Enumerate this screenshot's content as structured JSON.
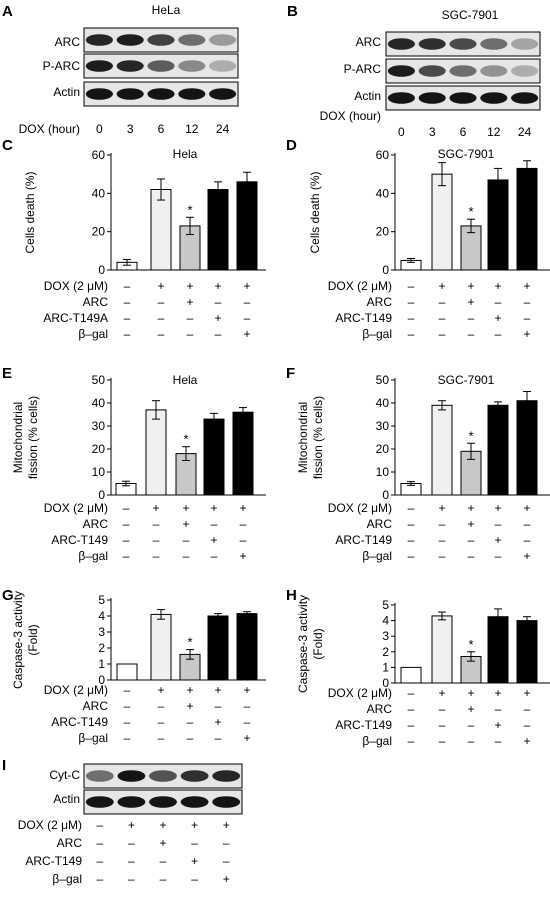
{
  "blots": [
    {
      "panel": "A",
      "title": "HeLa",
      "rows": [
        "ARC",
        "P-ARC",
        "Actin"
      ],
      "axis_label": "DOX (hour)",
      "lanes": [
        "0",
        "3",
        "6",
        "12",
        "24"
      ],
      "band_intensity": [
        [
          0.9,
          0.95,
          0.75,
          0.5,
          0.25
        ],
        [
          0.95,
          0.9,
          0.6,
          0.35,
          0.15
        ],
        [
          1,
          1,
          1,
          1,
          1
        ]
      ]
    },
    {
      "panel": "B",
      "title": "SGC-7901",
      "rows": [
        "ARC",
        "P-ARC",
        "Actin"
      ],
      "axis_label": "DOX (hour)",
      "lanes": [
        "0",
        "3",
        "6",
        "12",
        "24"
      ],
      "band_intensity": [
        [
          0.9,
          0.85,
          0.7,
          0.5,
          0.2
        ],
        [
          0.95,
          0.7,
          0.5,
          0.3,
          0.15
        ],
        [
          1,
          1,
          1,
          1,
          1
        ]
      ]
    },
    {
      "panel": "I",
      "title": "",
      "rows": [
        "Cyt-C",
        "Actin"
      ],
      "lanes": [
        "",
        "",
        "",
        "",
        ""
      ],
      "band_intensity": [
        [
          0.5,
          1.0,
          0.65,
          0.85,
          0.9
        ],
        [
          1,
          1,
          1,
          1,
          1
        ]
      ],
      "conditions": {
        "labels": [
          "DOX (2 μM)",
          "ARC",
          "ARC-T149",
          "β–gal"
        ],
        "signs": [
          [
            "–",
            "+",
            "+",
            "+",
            "+"
          ],
          [
            "–",
            "–",
            "+",
            "–",
            "–"
          ],
          [
            "–",
            "–",
            "–",
            "+",
            "–"
          ],
          [
            "–",
            "–",
            "–",
            "–",
            "+"
          ]
        ]
      }
    }
  ],
  "chart_data": [
    {
      "panel": "C",
      "type": "bar",
      "title": "Hela",
      "ylabel": "Cells death (%)",
      "xlabel": "",
      "ylim": [
        0,
        60
      ],
      "yticks": [
        "0",
        "20",
        "40",
        "60"
      ],
      "values": [
        4,
        42,
        23,
        42,
        46
      ],
      "errors": [
        1.5,
        5.5,
        4.5,
        4,
        5
      ],
      "significance": [
        "",
        "",
        "*",
        "",
        ""
      ],
      "conditions": {
        "labels": [
          "DOX (2 μM)",
          "ARC",
          "ARC-T149A",
          "β–gal"
        ],
        "signs": [
          [
            "–",
            "+",
            "+",
            "+",
            "+"
          ],
          [
            "–",
            "–",
            "+",
            "–",
            "–"
          ],
          [
            "–",
            "–",
            "–",
            "+",
            "–"
          ],
          [
            "–",
            "–",
            "–",
            "–",
            "+"
          ]
        ]
      }
    },
    {
      "panel": "D",
      "type": "bar",
      "title": "SGC-7901",
      "ylabel": "Cells death (%)",
      "xlabel": "",
      "ylim": [
        0,
        60
      ],
      "yticks": [
        "0",
        "20",
        "40",
        "60"
      ],
      "values": [
        5,
        50,
        23,
        47,
        53
      ],
      "errors": [
        1,
        6,
        3.5,
        6,
        4
      ],
      "significance": [
        "",
        "",
        "*",
        "",
        ""
      ],
      "conditions": {
        "labels": [
          "DOX (2 μM)",
          "ARC",
          "ARC-T149",
          "β–gal"
        ],
        "signs": [
          [
            "–",
            "+",
            "+",
            "+",
            "+"
          ],
          [
            "–",
            "–",
            "+",
            "–",
            "–"
          ],
          [
            "–",
            "–",
            "–",
            "+",
            "–"
          ],
          [
            "–",
            "–",
            "–",
            "–",
            "+"
          ]
        ]
      }
    },
    {
      "panel": "E",
      "type": "bar",
      "title": "Hela",
      "ylabel": "Mitochondrial fission (% cells)",
      "xlabel": "",
      "ylim": [
        0,
        50
      ],
      "yticks": [
        "0",
        "10",
        "20",
        "30",
        "40",
        "50"
      ],
      "values": [
        5,
        37,
        18,
        33,
        36
      ],
      "errors": [
        1,
        4,
        3,
        2.5,
        2
      ],
      "significance": [
        "",
        "",
        "*",
        "",
        ""
      ],
      "conditions": {
        "labels": [
          "DOX (2 μM)",
          "ARC",
          "ARC-T149",
          "β–gal"
        ],
        "signs": [
          [
            "–",
            "+",
            "+",
            "+",
            "+"
          ],
          [
            "–",
            "–",
            "+",
            "–",
            "–"
          ],
          [
            "–",
            "–",
            "–",
            "+",
            "–"
          ],
          [
            "–",
            "–",
            "–",
            "–",
            "+"
          ]
        ]
      }
    },
    {
      "panel": "F",
      "type": "bar",
      "title": "SGC-7901",
      "ylabel": "Mitochondrial fission (% cells)",
      "xlabel": "",
      "ylim": [
        0,
        50
      ],
      "yticks": [
        "0",
        "10",
        "20",
        "30",
        "40",
        "50"
      ],
      "values": [
        5,
        39,
        19,
        39,
        41
      ],
      "errors": [
        0.8,
        2,
        3.5,
        1.5,
        4
      ],
      "significance": [
        "",
        "",
        "*",
        "",
        ""
      ],
      "conditions": {
        "labels": [
          "DOX (2 μM)",
          "ARC",
          "ARC-T149",
          "β–gal"
        ],
        "signs": [
          [
            "–",
            "+",
            "+",
            "+",
            "+"
          ],
          [
            "–",
            "–",
            "+",
            "–",
            "–"
          ],
          [
            "–",
            "–",
            "–",
            "+",
            "–"
          ],
          [
            "–",
            "–",
            "–",
            "–",
            "+"
          ]
        ]
      }
    },
    {
      "panel": "G",
      "type": "bar",
      "title": "",
      "ylabel": "Caspase-3 activity (Fold)",
      "xlabel": "",
      "ylim": [
        0,
        5
      ],
      "yticks": [
        "0",
        "1",
        "2",
        "3",
        "4",
        "5"
      ],
      "values": [
        1,
        4.1,
        1.6,
        4.0,
        4.15
      ],
      "errors": [
        0,
        0.3,
        0.3,
        0.15,
        0.12
      ],
      "significance": [
        "",
        "",
        "*",
        "",
        ""
      ],
      "conditions": {
        "labels": [
          "DOX (2 μM)",
          "ARC",
          "ARC-T149",
          "β–gal"
        ],
        "signs": [
          [
            "–",
            "+",
            "+",
            "+",
            "+"
          ],
          [
            "–",
            "–",
            "+",
            "–",
            "–"
          ],
          [
            "–",
            "–",
            "–",
            "+",
            "–"
          ],
          [
            "–",
            "–",
            "–",
            "–",
            "+"
          ]
        ]
      }
    },
    {
      "panel": "H",
      "type": "bar",
      "title": "",
      "ylabel": "Caspase-3 activity (Fold)",
      "xlabel": "",
      "ylim": [
        0,
        5
      ],
      "yticks": [
        "0",
        "1",
        "2",
        "3",
        "4",
        "5"
      ],
      "values": [
        1,
        4.3,
        1.7,
        4.25,
        4.0
      ],
      "errors": [
        0,
        0.25,
        0.3,
        0.5,
        0.25
      ],
      "significance": [
        "",
        "",
        "*",
        "",
        ""
      ],
      "conditions": {
        "labels": [
          "DOX (2 μM)",
          "ARC",
          "ARC-T149",
          "β–gal"
        ],
        "signs": [
          [
            "–",
            "+",
            "+",
            "+",
            "+"
          ],
          [
            "–",
            "–",
            "+",
            "–",
            "–"
          ],
          [
            "–",
            "–",
            "–",
            "+",
            "–"
          ],
          [
            "–",
            "–",
            "–",
            "–",
            "+"
          ]
        ]
      }
    }
  ],
  "bar_colors": [
    "#ffffff",
    "#f0f0f0",
    "#c8c8c8",
    "#000000",
    "#000000"
  ]
}
